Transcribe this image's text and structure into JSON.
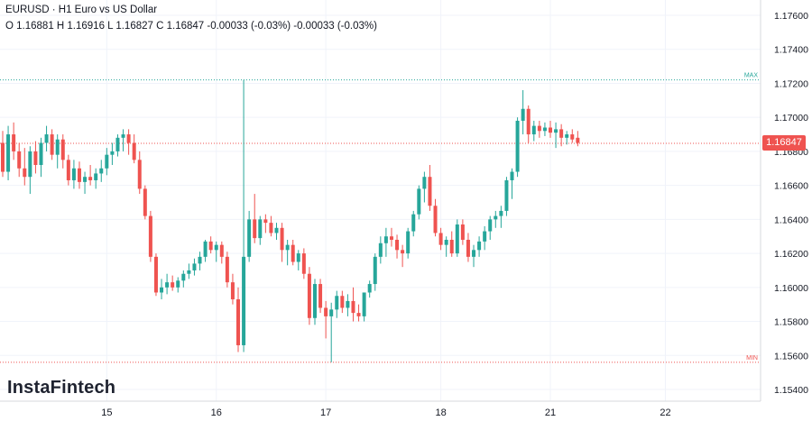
{
  "header": {
    "title": "EURUSD · H1 Euro vs US Dollar",
    "ohlc": "O 1.16881 H 1.16916 L 1.16827 C 1.16847 -0.00033 (-0.03%) -0.00033 (-0.03%)"
  },
  "brand": {
    "name": "InstaFintech"
  },
  "current_price": "1.16847",
  "colors": {
    "up": "#26a69a",
    "down": "#ef5350",
    "current_line": "#ef5350",
    "max_line": "#26a69a",
    "min_line": "#ef5350"
  },
  "chart_data": {
    "type": "candlestick",
    "symbol": "EURUSD",
    "timeframe": "H1",
    "ylim": [
      1.1535,
      1.1775
    ],
    "y_ticks": [
      "1.15400",
      "1.15600",
      "1.15800",
      "1.16000",
      "1.16200",
      "1.16400",
      "1.16600",
      "1.16800",
      "1.17000",
      "1.17200",
      "1.17400",
      "1.17600"
    ],
    "x_ticks": [
      {
        "label": "15",
        "index": 19
      },
      {
        "label": "16",
        "index": 39
      },
      {
        "label": "17",
        "index": 59
      },
      {
        "label": "18",
        "index": 80
      },
      {
        "label": "21",
        "index": 100
      },
      {
        "label": "22",
        "index": 121
      }
    ],
    "max": {
      "label": "MAX",
      "value": 1.1722
    },
    "min": {
      "label": "MIN",
      "value": 1.1556
    },
    "current": {
      "label": "1.16847",
      "value": 1.16847
    },
    "candles": [
      [
        1.1685,
        1.1692,
        1.1665,
        1.1668
      ],
      [
        1.1668,
        1.1695,
        1.1663,
        1.169
      ],
      [
        1.169,
        1.1697,
        1.1675,
        1.168
      ],
      [
        1.168,
        1.1685,
        1.1665,
        1.167
      ],
      [
        1.167,
        1.1682,
        1.166,
        1.1665
      ],
      [
        1.1665,
        1.1683,
        1.1655,
        1.168
      ],
      [
        1.168,
        1.1686,
        1.1667,
        1.1672
      ],
      [
        1.1672,
        1.1688,
        1.1665,
        1.1685
      ],
      [
        1.1685,
        1.1695,
        1.168,
        1.169
      ],
      [
        1.169,
        1.1693,
        1.1675,
        1.1678
      ],
      [
        1.1678,
        1.169,
        1.167,
        1.1687
      ],
      [
        1.1687,
        1.169,
        1.167,
        1.1675
      ],
      [
        1.1675,
        1.1678,
        1.166,
        1.1663
      ],
      [
        1.1663,
        1.1675,
        1.1658,
        1.167
      ],
      [
        1.167,
        1.1674,
        1.1658,
        1.1662
      ],
      [
        1.1662,
        1.1668,
        1.1655,
        1.1665
      ],
      [
        1.1665,
        1.1672,
        1.166,
        1.1663
      ],
      [
        1.1663,
        1.167,
        1.1658,
        1.1667
      ],
      [
        1.1667,
        1.1675,
        1.1662,
        1.167
      ],
      [
        1.167,
        1.1682,
        1.1666,
        1.1678
      ],
      [
        1.1678,
        1.1685,
        1.1672,
        1.168
      ],
      [
        1.168,
        1.169,
        1.1677,
        1.1688
      ],
      [
        1.1688,
        1.1693,
        1.168,
        1.169
      ],
      [
        1.169,
        1.1693,
        1.1678,
        1.1685
      ],
      [
        1.1685,
        1.169,
        1.1673,
        1.1675
      ],
      [
        1.1675,
        1.168,
        1.1655,
        1.1658
      ],
      [
        1.1658,
        1.166,
        1.164,
        1.1642
      ],
      [
        1.1642,
        1.1645,
        1.1615,
        1.1618
      ],
      [
        1.1618,
        1.162,
        1.1595,
        1.1597
      ],
      [
        1.1597,
        1.1605,
        1.1593,
        1.16
      ],
      [
        1.16,
        1.1608,
        1.1596,
        1.1603
      ],
      [
        1.1603,
        1.1607,
        1.1598,
        1.16
      ],
      [
        1.16,
        1.1606,
        1.1597,
        1.1604
      ],
      [
        1.1604,
        1.161,
        1.16,
        1.1608
      ],
      [
        1.1608,
        1.1614,
        1.1605,
        1.161
      ],
      [
        1.161,
        1.1617,
        1.1607,
        1.1614
      ],
      [
        1.1614,
        1.1621,
        1.161,
        1.1618
      ],
      [
        1.1618,
        1.1628,
        1.1615,
        1.1627
      ],
      [
        1.1627,
        1.163,
        1.162,
        1.1622
      ],
      [
        1.1622,
        1.1627,
        1.1615,
        1.1625
      ],
      [
        1.1625,
        1.1627,
        1.1614,
        1.1618
      ],
      [
        1.1618,
        1.1621,
        1.16,
        1.1603
      ],
      [
        1.1603,
        1.1608,
        1.159,
        1.1593
      ],
      [
        1.1593,
        1.16,
        1.1562,
        1.1566
      ],
      [
        1.1566,
        1.1722,
        1.1562,
        1.1618
      ],
      [
        1.1618,
        1.1645,
        1.1615,
        1.164
      ],
      [
        1.164,
        1.1655,
        1.1626,
        1.1629
      ],
      [
        1.1629,
        1.1642,
        1.1625,
        1.164
      ],
      [
        1.164,
        1.1643,
        1.1632,
        1.1638
      ],
      [
        1.1638,
        1.1642,
        1.163,
        1.1632
      ],
      [
        1.1632,
        1.1638,
        1.1628,
        1.1635
      ],
      [
        1.1635,
        1.1638,
        1.1615,
        1.1622
      ],
      [
        1.1622,
        1.1628,
        1.1613,
        1.1625
      ],
      [
        1.1625,
        1.1628,
        1.1613,
        1.1615
      ],
      [
        1.1615,
        1.1622,
        1.161,
        1.162
      ],
      [
        1.162,
        1.1623,
        1.1605,
        1.1608
      ],
      [
        1.1608,
        1.1612,
        1.1578,
        1.1582
      ],
      [
        1.1582,
        1.1605,
        1.1578,
        1.1602
      ],
      [
        1.1602,
        1.1605,
        1.1585,
        1.1588
      ],
      [
        1.1588,
        1.1592,
        1.157,
        1.1583
      ],
      [
        1.1583,
        1.1591,
        1.1556,
        1.1587
      ],
      [
        1.1587,
        1.1598,
        1.1582,
        1.1595
      ],
      [
        1.1595,
        1.1598,
        1.1585,
        1.1588
      ],
      [
        1.1588,
        1.1596,
        1.1583,
        1.1592
      ],
      [
        1.1592,
        1.16,
        1.158,
        1.1585
      ],
      [
        1.1585,
        1.159,
        1.158,
        1.1583
      ],
      [
        1.1583,
        1.1597,
        1.158,
        1.1597
      ],
      [
        1.1597,
        1.1604,
        1.1594,
        1.1602
      ],
      [
        1.1602,
        1.162,
        1.1598,
        1.1618
      ],
      [
        1.1618,
        1.163,
        1.1614,
        1.1626
      ],
      [
        1.1626,
        1.1635,
        1.1618,
        1.163
      ],
      [
        1.163,
        1.1635,
        1.1624,
        1.1628
      ],
      [
        1.1628,
        1.1631,
        1.1617,
        1.1622
      ],
      [
        1.1622,
        1.1625,
        1.1612,
        1.162
      ],
      [
        1.162,
        1.1635,
        1.1617,
        1.1633
      ],
      [
        1.1633,
        1.1645,
        1.163,
        1.1643
      ],
      [
        1.1643,
        1.166,
        1.164,
        1.1658
      ],
      [
        1.1658,
        1.1668,
        1.165,
        1.1665
      ],
      [
        1.1665,
        1.1672,
        1.1645,
        1.1648
      ],
      [
        1.1648,
        1.1652,
        1.163,
        1.1632
      ],
      [
        1.1632,
        1.1635,
        1.1622,
        1.1625
      ],
      [
        1.1625,
        1.163,
        1.1618,
        1.1628
      ],
      [
        1.1628,
        1.1633,
        1.1618,
        1.162
      ],
      [
        1.162,
        1.164,
        1.1618,
        1.1637
      ],
      [
        1.1637,
        1.164,
        1.1625,
        1.1628
      ],
      [
        1.1628,
        1.1632,
        1.1615,
        1.1618
      ],
      [
        1.1618,
        1.1625,
        1.1612,
        1.1622
      ],
      [
        1.1622,
        1.163,
        1.1618,
        1.1627
      ],
      [
        1.1627,
        1.1636,
        1.1622,
        1.1633
      ],
      [
        1.1633,
        1.1642,
        1.1628,
        1.164
      ],
      [
        1.164,
        1.1645,
        1.1635,
        1.1642
      ],
      [
        1.1642,
        1.1648,
        1.1635,
        1.1645
      ],
      [
        1.1645,
        1.1665,
        1.1642,
        1.1663
      ],
      [
        1.1663,
        1.167,
        1.1652,
        1.1668
      ],
      [
        1.1668,
        1.17,
        1.1665,
        1.1698
      ],
      [
        1.1698,
        1.1716,
        1.169,
        1.1705
      ],
      [
        1.1705,
        1.1707,
        1.1685,
        1.169
      ],
      [
        1.169,
        1.1698,
        1.1686,
        1.1695
      ],
      [
        1.1695,
        1.1698,
        1.1688,
        1.1692
      ],
      [
        1.1692,
        1.1697,
        1.1689,
        1.1694
      ],
      [
        1.1694,
        1.1698,
        1.1688,
        1.1691
      ],
      [
        1.1691,
        1.1697,
        1.1682,
        1.1693
      ],
      [
        1.1693,
        1.1696,
        1.1683,
        1.1688
      ],
      [
        1.1688,
        1.1692,
        1.1684,
        1.169
      ],
      [
        1.169,
        1.1693,
        1.1685,
        1.1687
      ],
      [
        1.1688,
        1.1692,
        1.1683,
        1.1685
      ]
    ]
  }
}
